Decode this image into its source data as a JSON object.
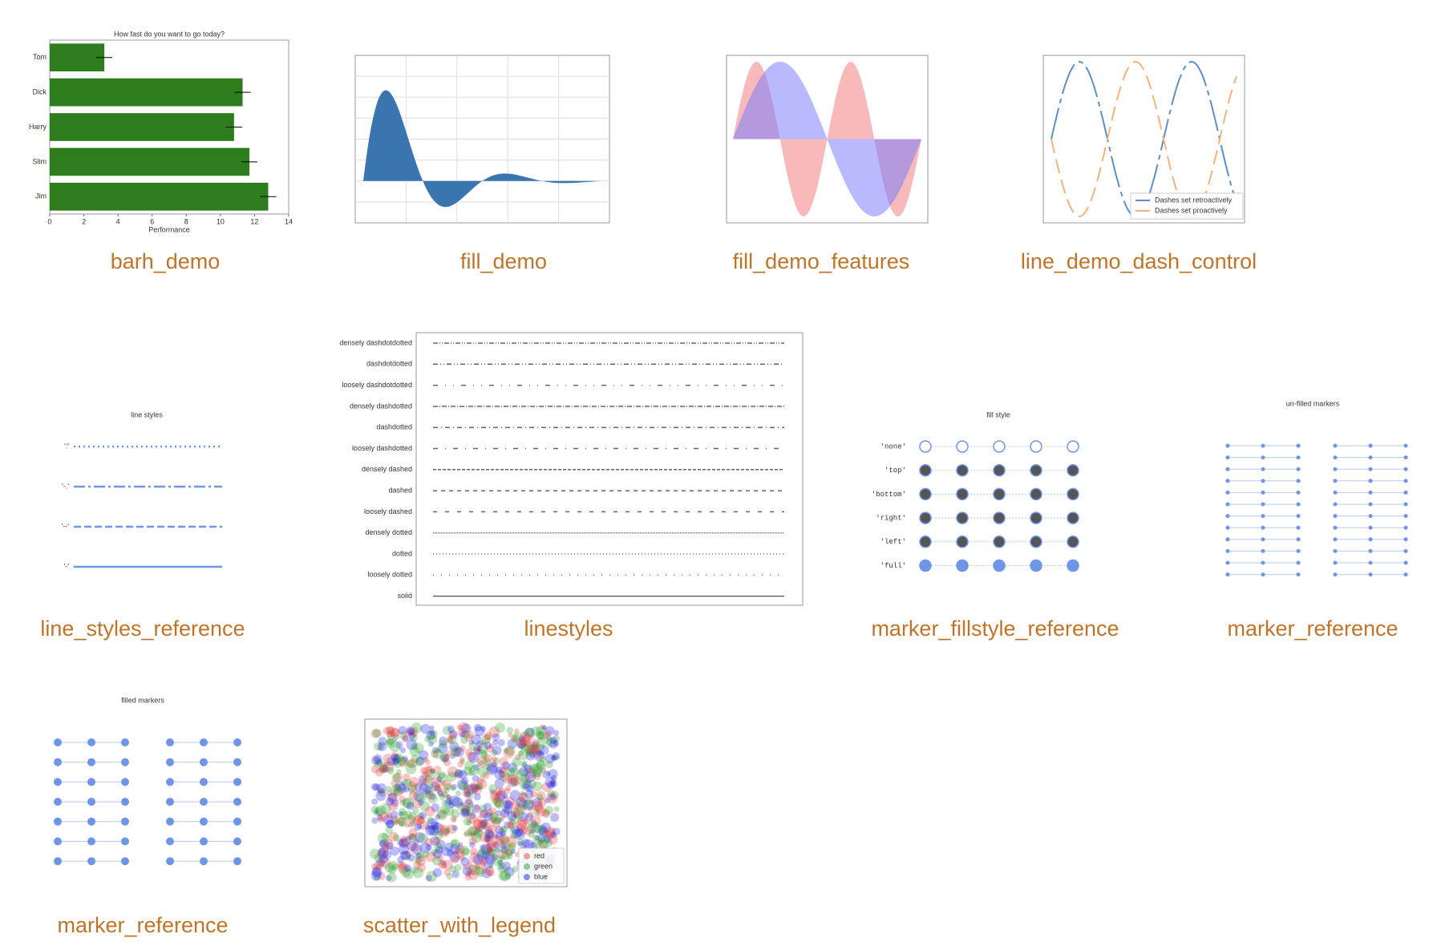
{
  "gallery": [
    {
      "caption": "barh_demo",
      "title": "How fast do you want to go today?",
      "xlabel": "Performance",
      "categories": [
        "Tom",
        "Dick",
        "Harry",
        "Slim",
        "Jim"
      ],
      "values": [
        3.2,
        11.3,
        10.8,
        11.7,
        12.8
      ],
      "xlim": [
        0,
        14
      ],
      "xticks": [
        0,
        2,
        4,
        6,
        8,
        10,
        12,
        14
      ]
    },
    {
      "caption": "fill_demo"
    },
    {
      "caption": "fill_demo_features"
    },
    {
      "caption": "line_demo_dash_control",
      "legend": [
        "Dashes set retroactively",
        "Dashes set proactively"
      ]
    },
    {
      "caption": "line_styles_reference",
      "title": "line styles",
      "labels": [
        "':'",
        "'-.'",
        "'--'",
        "'-'"
      ]
    },
    {
      "caption": "linestyles",
      "labels": [
        "densely dashdotdotted",
        "dashdotdotted",
        "loosely dashdotdotted",
        "densely dashdotted",
        "dashdotted",
        "loosely dashdotted",
        "densely dashed",
        "dashed",
        "loosely dashed",
        "densely dotted",
        "dotted",
        "loosely dotted",
        "solid"
      ]
    },
    {
      "caption": "marker_fillstyle_reference",
      "title": "fill style",
      "labels": [
        "'none'",
        "'top'",
        "'bottom'",
        "'right'",
        "'left'",
        "'full'"
      ]
    },
    {
      "caption": "marker_reference",
      "title": "un-filled markers"
    },
    {
      "caption": "marker_reference",
      "title": "filled markers"
    },
    {
      "caption": "scatter_with_legend",
      "legend": [
        "red",
        "green",
        "blue"
      ]
    }
  ]
}
